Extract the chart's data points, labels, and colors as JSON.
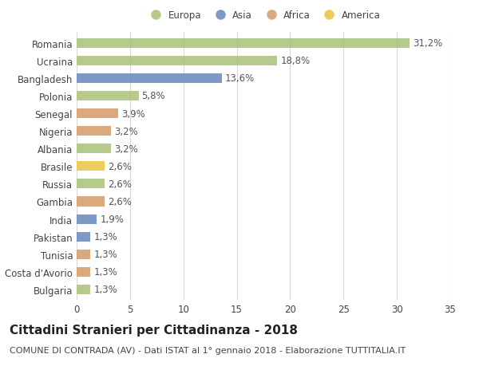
{
  "categories": [
    "Romania",
    "Ucraina",
    "Bangladesh",
    "Polonia",
    "Senegal",
    "Nigeria",
    "Albania",
    "Brasile",
    "Russia",
    "Gambia",
    "India",
    "Pakistan",
    "Tunisia",
    "Costa d'Avorio",
    "Bulgaria"
  ],
  "values": [
    31.2,
    18.8,
    13.6,
    5.8,
    3.9,
    3.2,
    3.2,
    2.6,
    2.6,
    2.6,
    1.9,
    1.3,
    1.3,
    1.3,
    1.3
  ],
  "labels": [
    "31,2%",
    "18,8%",
    "13,6%",
    "5,8%",
    "3,9%",
    "3,2%",
    "3,2%",
    "2,6%",
    "2,6%",
    "2,6%",
    "1,9%",
    "1,3%",
    "1,3%",
    "1,3%",
    "1,3%"
  ],
  "continents": [
    "Europa",
    "Europa",
    "Asia",
    "Europa",
    "Africa",
    "Africa",
    "Europa",
    "America",
    "Europa",
    "Africa",
    "Asia",
    "Asia",
    "Africa",
    "Africa",
    "Europa"
  ],
  "continent_colors": {
    "Europa": "#adc57e",
    "Asia": "#6f8fc0",
    "Africa": "#d9a070",
    "America": "#e8c84a"
  },
  "legend_order": [
    "Europa",
    "Asia",
    "Africa",
    "America"
  ],
  "title": "Cittadini Stranieri per Cittadinanza - 2018",
  "subtitle": "COMUNE DI CONTRADA (AV) - Dati ISTAT al 1° gennaio 2018 - Elaborazione TUTTITALIA.IT",
  "xlim": [
    0,
    35
  ],
  "xticks": [
    0,
    5,
    10,
    15,
    20,
    25,
    30,
    35
  ],
  "background_color": "#ffffff",
  "grid_color": "#d8d8d8",
  "bar_height": 0.55,
  "label_fontsize": 8.5,
  "tick_fontsize": 8.5,
  "title_fontsize": 11,
  "subtitle_fontsize": 8
}
